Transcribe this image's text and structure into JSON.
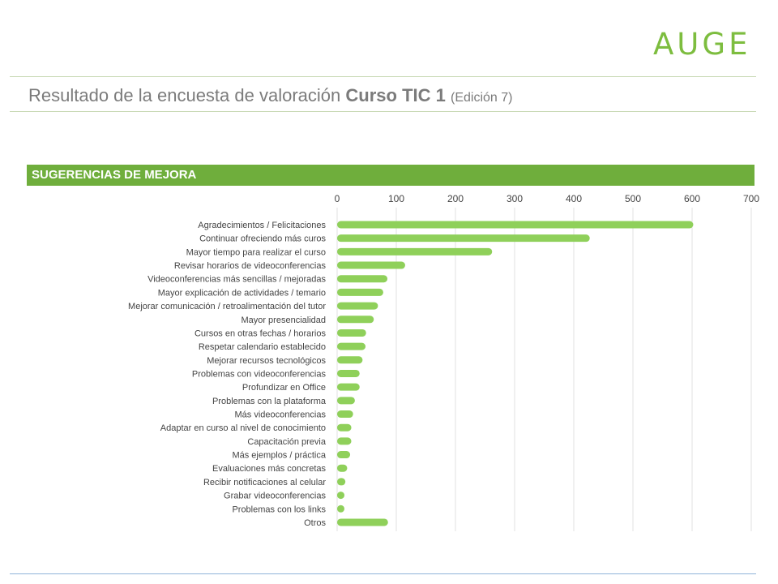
{
  "logo": "AUGE",
  "heading": {
    "prefix": "Resultado de la encuesta de valoración",
    "course": "Curso TIC 1",
    "edition": "(Edición 7)"
  },
  "colors": {
    "bar": "#8fd05a",
    "banner": "#6fae3c",
    "grid": "#e2e2e2",
    "text": "#444444"
  },
  "chart_data": {
    "type": "bar",
    "orientation": "horizontal",
    "title": "SUGERENCIAS DE MEJORA",
    "xlim": [
      0,
      700
    ],
    "xticks": [
      0,
      100,
      200,
      300,
      400,
      500,
      600,
      700
    ],
    "grid": true,
    "axis_position": "top",
    "categories": [
      "Agradecimientos / Felicitaciones",
      "Continuar ofreciendo más curos",
      "Mayor tiempo para realizar el curso",
      "Revisar horarios de videoconferencias",
      "Videoconferencias más sencillas / mejoradas",
      "Mayor explicación de actividades / temario",
      "Mejorar comunicación / retroalimentación del tutor",
      "Mayor presencialidad",
      "Cursos en otras fechas / horarios",
      "Respetar calendario establecido",
      "Mejorar recursos tecnológicos",
      "Problemas con videoconferencias",
      "Profundizar en Office",
      "Problemas con la plataforma",
      "Más videoconferencias",
      "Adaptar en curso al nivel de conocimiento",
      "Capacitación previa",
      "Más ejemplos / práctica",
      "Evaluaciones más concretas",
      "Recibir notificaciones al celular",
      "Grabar videoconferencias",
      "Problemas con los links",
      "Otros"
    ],
    "values": [
      602,
      427,
      262,
      115,
      85,
      78,
      69,
      62,
      49,
      48,
      43,
      38,
      38,
      30,
      27,
      24,
      24,
      22,
      17,
      14,
      11,
      6,
      86
    ]
  }
}
